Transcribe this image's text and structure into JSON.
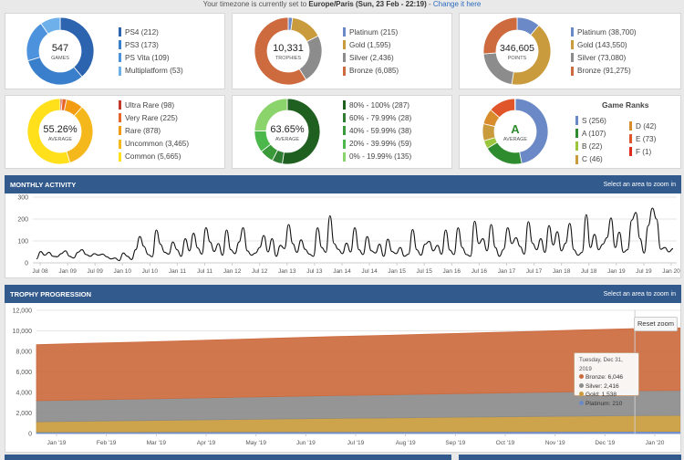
{
  "timezone": {
    "prefix": "Your timezone is currently set to ",
    "zone": "Europe/Paris",
    "time": "(Sun, 23 Feb - 22:19)",
    "sep": " - ",
    "link": "Change it here"
  },
  "colors": {
    "panel": "#325a8c",
    "bronze": "#cd6b3f",
    "silver": "#8c8c8c",
    "gold": "#c99b3c",
    "platinum": "#6b89c6"
  },
  "summary": {
    "games": {
      "value": "547",
      "label": "GAMES",
      "items": [
        {
          "label": "PS4 (212)",
          "count": 212,
          "color": "#2c64b0"
        },
        {
          "label": "PS3 (173)",
          "count": 173,
          "color": "#3a7fcc"
        },
        {
          "label": "PS Vita (109)",
          "count": 109,
          "color": "#4d92dd"
        },
        {
          "label": "Multiplatform (53)",
          "count": 53,
          "color": "#6db0ea"
        }
      ]
    },
    "trophies": {
      "value": "10,331",
      "label": "TROPHIES",
      "items": [
        {
          "label": "Platinum (215)",
          "count": 215,
          "color": "#6b89c6"
        },
        {
          "label": "Gold (1,595)",
          "count": 1595,
          "color": "#c99b3c"
        },
        {
          "label": "Silver (2,436)",
          "count": 2436,
          "color": "#8c8c8c"
        },
        {
          "label": "Bronze (6,085)",
          "count": 6085,
          "color": "#cd6b3f"
        }
      ]
    },
    "points": {
      "value": "346,605",
      "label": "POINTS",
      "items": [
        {
          "label": "Platinum (38,700)",
          "count": 38700,
          "color": "#6b89c6"
        },
        {
          "label": "Gold (143,550)",
          "count": 143550,
          "color": "#c99b3c"
        },
        {
          "label": "Silver (73,080)",
          "count": 73080,
          "color": "#8c8c8c"
        },
        {
          "label": "Bronze (91,275)",
          "count": 91275,
          "color": "#cd6b3f"
        }
      ]
    },
    "rarity": {
      "value": "55.26%",
      "label": "AVERAGE",
      "items": [
        {
          "label": "Ultra Rare (98)",
          "count": 98,
          "color": "#c0392b"
        },
        {
          "label": "Very Rare (225)",
          "count": 225,
          "color": "#e8652a"
        },
        {
          "label": "Rare (878)",
          "count": 878,
          "color": "#f39c12"
        },
        {
          "label": "Uncommon (3,465)",
          "count": 3465,
          "color": "#f5b81c"
        },
        {
          "label": "Common (5,665)",
          "count": 5665,
          "color": "#ffe01a"
        }
      ]
    },
    "completion": {
      "value": "63.65%",
      "label": "AVERAGE",
      "items": [
        {
          "label": "80% - 100% (287)",
          "count": 287,
          "color": "#1f5f1f"
        },
        {
          "label": "60% - 79.99% (28)",
          "count": 28,
          "color": "#2e7d32"
        },
        {
          "label": "40% - 59.99% (38)",
          "count": 38,
          "color": "#3a9a3a"
        },
        {
          "label": "20% - 39.99% (59)",
          "count": 59,
          "color": "#4cb84c"
        },
        {
          "label": "0% - 19.99% (135)",
          "count": 135,
          "color": "#8bd36b"
        }
      ]
    },
    "ranks": {
      "value": "A",
      "label": "AVERAGE",
      "title": "Game Ranks",
      "left": [
        {
          "label": "S (256)",
          "count": 256,
          "color": "#6b89c6"
        },
        {
          "label": "A (107)",
          "count": 107,
          "color": "#2e8b2e"
        },
        {
          "label": "B (22)",
          "count": 22,
          "color": "#9bc53d"
        },
        {
          "label": "C (46)",
          "count": 46,
          "color": "#c99b3c"
        }
      ],
      "right": [
        {
          "label": "D (42)",
          "count": 42,
          "color": "#d98c2b"
        },
        {
          "label": "E (73)",
          "count": 73,
          "color": "#e0562a"
        },
        {
          "label": "F (1)",
          "count": 1,
          "color": "#e02a1a"
        }
      ]
    }
  },
  "monthly": {
    "title": "MONTHLY ACTIVITY",
    "hint": "Select an area to zoom in"
  },
  "progression": {
    "title": "TROPHY PROGRESSION",
    "hint": "Select an area to zoom in",
    "reset": "Reset zoom"
  },
  "tooltip": {
    "title": "Tuesday, Dec 31, 2019",
    "bronze": "Bronze: 6,046",
    "silver": "Silver: 2,416",
    "gold": "Gold: 1,538",
    "platinum": "Platinum: 210"
  },
  "chart_data": [
    {
      "type": "line",
      "title": "MONTHLY ACTIVITY",
      "ylim": [
        0,
        300
      ],
      "yticks": [
        "0",
        "100",
        "200",
        "300"
      ],
      "xticks": [
        "Jul 08",
        "Jan 09",
        "Jul 09",
        "Jan 10",
        "Jul 10",
        "Jan 11",
        "Jul 11",
        "Jan 12",
        "Jul 12",
        "Jan 13",
        "Jul 13",
        "Jan 14",
        "Jul 14",
        "Jan 15",
        "Jul 15",
        "Jan 16",
        "Jul 16",
        "Jan 17",
        "Jul 17",
        "Jan 18",
        "Jul 18",
        "Jan 19",
        "Jul 19",
        "Jan 20"
      ],
      "series": [
        {
          "values": [
            18,
            52,
            35,
            48,
            30,
            28,
            42,
            55,
            30,
            22,
            48,
            60,
            38,
            30,
            42,
            35,
            40,
            28,
            18,
            22,
            10,
            45,
            30,
            15,
            60,
            120,
            75,
            38,
            28,
            150,
            85,
            48,
            40,
            95,
            60,
            30,
            110,
            55,
            135,
            68,
            40,
            160,
            95,
            52,
            88,
            35,
            150,
            60,
            42,
            95,
            160,
            55,
            35,
            45,
            70,
            125,
            50,
            110,
            30,
            80,
            65,
            175,
            88,
            48,
            105,
            62,
            40,
            30,
            160,
            70,
            48,
            215,
            88,
            62,
            42,
            90,
            50,
            160,
            60,
            38,
            120,
            55,
            45,
            85,
            30,
            108,
            52,
            42,
            70,
            30,
            40,
            152,
            60,
            35,
            85,
            98,
            55,
            80,
            40,
            150,
            58,
            38,
            160,
            70,
            38,
            30,
            190,
            88,
            110,
            55,
            175,
            70,
            30,
            62,
            160,
            88,
            115,
            75,
            40,
            188,
            90,
            60,
            110,
            48,
            170,
            82,
            142,
            55,
            90,
            180,
            60,
            35,
            48,
            220,
            70,
            130,
            60,
            85,
            115,
            205,
            70,
            140,
            48,
            60,
            195,
            230,
            110,
            45,
            170,
            250,
            200,
            62,
            70,
            50,
            65
          ]
        }
      ]
    },
    {
      "type": "area",
      "title": "TROPHY PROGRESSION",
      "stacked": true,
      "ylim": [
        0,
        12000
      ],
      "yticks": [
        "0",
        "2,000",
        "4,000",
        "6,000",
        "8,000",
        "10,000",
        "12,000"
      ],
      "xticks": [
        "Jan '19",
        "Feb '19",
        "Mar '19",
        "Apr '19",
        "May '19",
        "Jun '19",
        "Jul '19",
        "Aug '19",
        "Sep '19",
        "Oct '19",
        "Nov '19",
        "Dec '19",
        "Jan '20"
      ],
      "series": [
        {
          "name": "Platinum",
          "color": "#6b89c6",
          "values": [
            150,
            155,
            160,
            165,
            170,
            175,
            180,
            185,
            190,
            195,
            200,
            205,
            210,
            212
          ]
        },
        {
          "name": "Gold",
          "color": "#c99b3c",
          "values": [
            1000,
            1050,
            1100,
            1150,
            1200,
            1250,
            1300,
            1330,
            1380,
            1420,
            1460,
            1500,
            1538,
            1560
          ]
        },
        {
          "name": "Silver",
          "color": "#8c8c8c",
          "values": [
            2050,
            2080,
            2100,
            2130,
            2160,
            2190,
            2220,
            2250,
            2280,
            2310,
            2340,
            2380,
            2416,
            2430
          ]
        },
        {
          "name": "Bronze",
          "color": "#cd6b3f",
          "values": [
            5450,
            5500,
            5540,
            5590,
            5640,
            5690,
            5740,
            5790,
            5840,
            5890,
            5940,
            6000,
            6046,
            6080
          ]
        }
      ]
    }
  ]
}
